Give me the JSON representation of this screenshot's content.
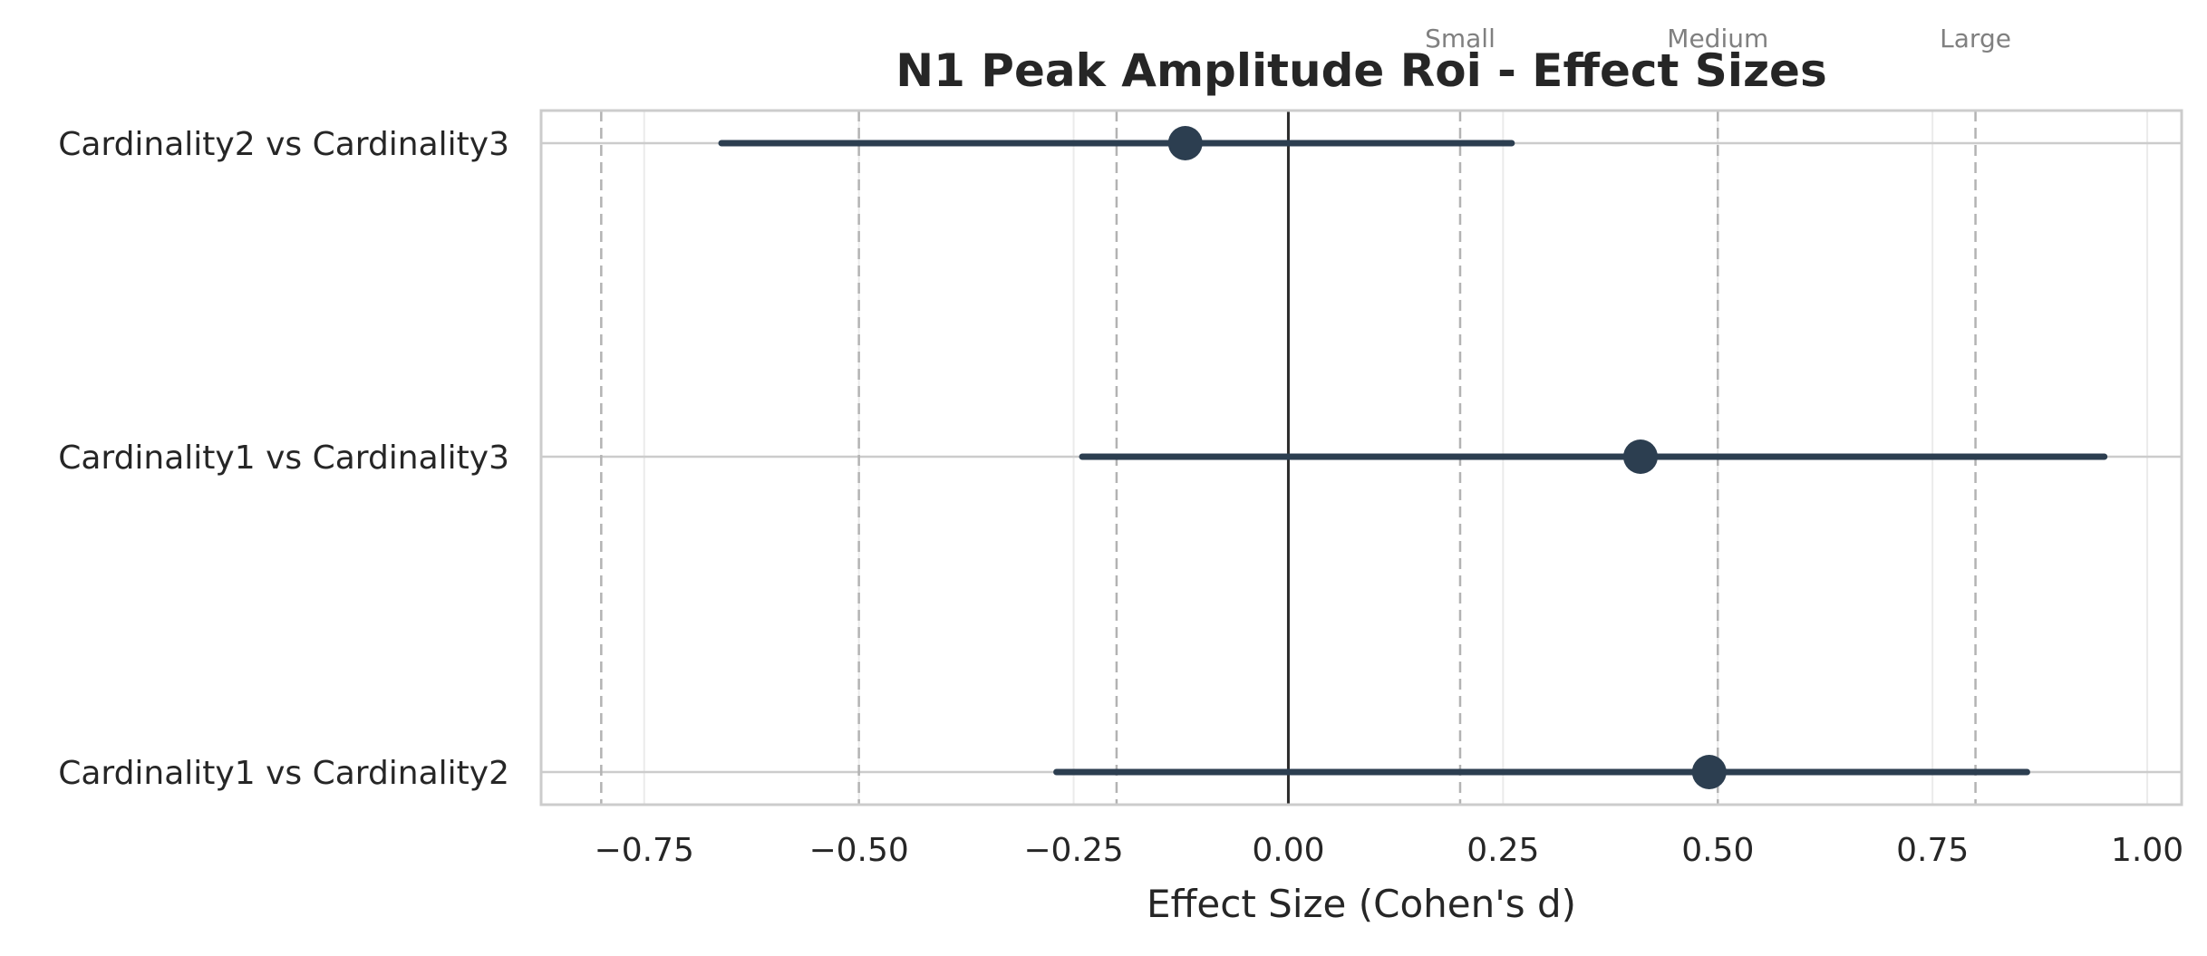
{
  "chart_data": {
    "type": "scatter",
    "subtype": "forest-plot",
    "title": "N1 Peak Amplitude Roi - Effect Sizes",
    "xlabel": "Effect Size (Cohen's d)",
    "ylabel": "",
    "xlim": [
      -0.87,
      1.04
    ],
    "x_ticks": [
      -0.75,
      -0.5,
      -0.25,
      0.0,
      0.25,
      0.5,
      0.75,
      1.0
    ],
    "x_tick_labels": [
      "−0.75",
      "−0.50",
      "−0.25",
      "0.00",
      "0.25",
      "0.50",
      "0.75",
      "1.00"
    ],
    "grid": true,
    "zero_line": true,
    "marker_color": "#2c3e50",
    "comparisons": [
      {
        "label": "Cardinality2 vs Cardinality3",
        "d": -0.12,
        "ci_low": -0.66,
        "ci_high": 0.26
      },
      {
        "label": "Cardinality1 vs Cardinality3",
        "d": 0.41,
        "ci_low": -0.24,
        "ci_high": 0.95
      },
      {
        "label": "Cardinality1 vs Cardinality2",
        "d": 0.49,
        "ci_low": -0.27,
        "ci_high": 0.86
      }
    ],
    "reference_lines": [
      {
        "value": -0.8,
        "label": ""
      },
      {
        "value": -0.5,
        "label": ""
      },
      {
        "value": -0.2,
        "label": ""
      },
      {
        "value": 0.2,
        "label": "Small"
      },
      {
        "value": 0.5,
        "label": "Medium"
      },
      {
        "value": 0.8,
        "label": "Large"
      }
    ]
  }
}
